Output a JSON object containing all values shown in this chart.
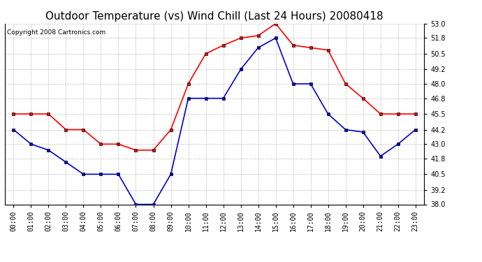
{
  "title": "Outdoor Temperature (vs) Wind Chill (Last 24 Hours) 20080418",
  "copyright": "Copyright 2008 Cartronics.com",
  "x_labels": [
    "00:00",
    "01:00",
    "02:00",
    "03:00",
    "04:00",
    "05:00",
    "06:00",
    "07:00",
    "08:00",
    "09:00",
    "10:00",
    "11:00",
    "12:00",
    "13:00",
    "14:00",
    "15:00",
    "16:00",
    "17:00",
    "18:00",
    "19:00",
    "20:00",
    "21:00",
    "22:00",
    "23:00"
  ],
  "red_temp": [
    45.5,
    45.5,
    45.5,
    44.2,
    44.2,
    43.0,
    43.0,
    42.5,
    42.5,
    44.2,
    48.0,
    50.5,
    51.2,
    51.8,
    52.0,
    53.0,
    51.2,
    51.0,
    50.8,
    48.0,
    46.8,
    45.5,
    45.5,
    45.5
  ],
  "blue_wc": [
    44.2,
    43.0,
    42.5,
    41.5,
    40.5,
    40.5,
    40.5,
    38.0,
    38.0,
    40.5,
    46.8,
    46.8,
    46.8,
    49.2,
    51.0,
    51.8,
    48.0,
    48.0,
    45.5,
    44.2,
    44.0,
    42.0,
    43.0,
    44.2
  ],
  "red_color": "#ff0000",
  "blue_color": "#0000cc",
  "background_color": "#ffffff",
  "grid_color": "#c0c0c0",
  "ylim": [
    38.0,
    53.0
  ],
  "yticks": [
    38.0,
    39.2,
    40.5,
    41.8,
    43.0,
    44.2,
    45.5,
    46.8,
    48.0,
    49.2,
    50.5,
    51.8,
    53.0
  ],
  "title_fontsize": 11,
  "copyright_fontsize": 6.5,
  "tick_fontsize": 7
}
